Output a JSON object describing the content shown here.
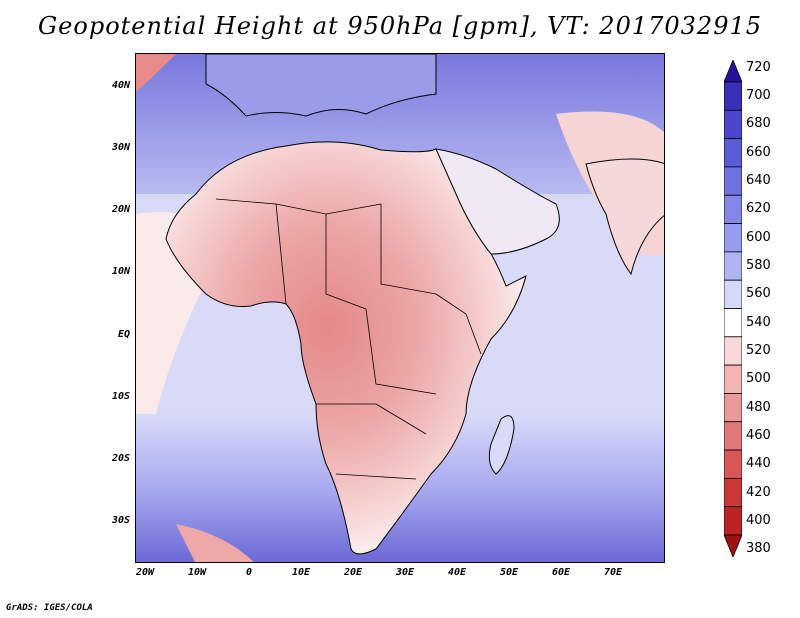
{
  "title": "Geopotential Height at 950hPa [gpm], VT: 2017032915",
  "credit": "GrADS: IGES/COLA",
  "lat_labels": [
    "40N",
    "30N",
    "20N",
    "10N",
    "EQ",
    "10S",
    "20S",
    "30S"
  ],
  "lon_labels": [
    "20W",
    "10W",
    "0",
    "10E",
    "20E",
    "30E",
    "40E",
    "50E",
    "60E",
    "70E"
  ],
  "colorbar": {
    "levels": [
      720,
      700,
      680,
      660,
      640,
      620,
      600,
      580,
      560,
      540,
      520,
      500,
      480,
      460,
      440,
      420,
      400,
      380
    ],
    "colors": [
      "#27109a",
      "#3a30b8",
      "#4b46cc",
      "#5d5cd8",
      "#7172e0",
      "#8486e8",
      "#989cee",
      "#b0b4f2",
      "#d6d8f8",
      "#ffffff",
      "#f8d8d8",
      "#f2b4b4",
      "#e89a9a",
      "#e07878",
      "#d85858",
      "#cc3838",
      "#bc2424",
      "#a01010"
    ]
  },
  "map": {
    "region": "Africa",
    "lon_range": [
      -22,
      80
    ],
    "lat_range": [
      -37,
      45
    ],
    "colors": {
      "land_outline": "#000000",
      "ocean_far": "#8c8ce4",
      "ocean_mid": "#b4b6f2",
      "ocean_near": "#d8daf8",
      "land_pink": "#f4c8c8",
      "land_pink2": "#eca8a8",
      "land_deep": "#e48c8c"
    }
  }
}
